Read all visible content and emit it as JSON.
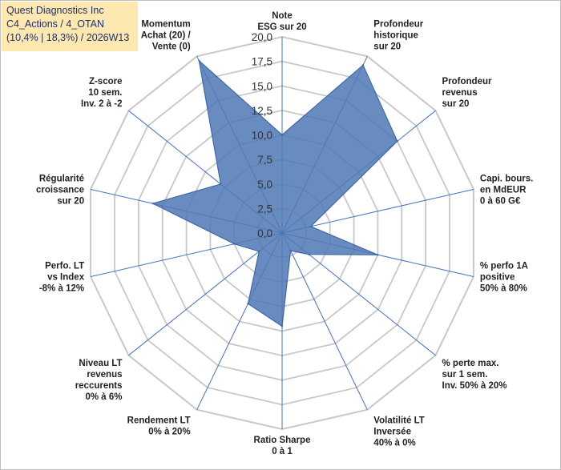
{
  "header": {
    "company": "Quest Diagnostics Inc",
    "category": "C4_Actions / 4_OTAN",
    "summary": "(10,4% | 18,3%) / 2026W13"
  },
  "colors": {
    "fill": "#4f78b5",
    "stroke": "#3f68a8",
    "grid": "#c8c8c8",
    "spoke": "#4472c4",
    "titleBg": "#fde8b0"
  },
  "chart_data": {
    "type": "radar",
    "title": "Quest Diagnostics Inc",
    "rmin": 0,
    "rmax": 20,
    "step": 2.5,
    "tick_labels": [
      "0,0",
      "2,5",
      "5,0",
      "7,5",
      "10,0",
      "12,5",
      "15,0",
      "17,5",
      "20,0"
    ],
    "axes": [
      {
        "label": [
          "Note",
          "ESG sur 20"
        ],
        "value": 10.0
      },
      {
        "label": [
          "Profondeur",
          "historique",
          "sur 20"
        ],
        "value": 19.0
      },
      {
        "label": [
          "Profondeur",
          "revenus",
          "sur 20"
        ],
        "value": 15.0
      },
      {
        "label": [
          "Capi. bours.",
          "en MdEUR",
          "0 à 60 G€"
        ],
        "value": 3.0
      },
      {
        "label": [
          "% perfo 1A",
          "positive",
          "50% à 80%"
        ],
        "value": 10.0
      },
      {
        "label": [
          "% perte max.",
          "sur 1 sem.",
          "Inv. 50% à 20%"
        ],
        "value": 3.5
      },
      {
        "label": [
          "Volatilité LT",
          "Inversée",
          "40% à 0%"
        ],
        "value": 2.0
      },
      {
        "label": [
          "Ratio Sharpe",
          "0 à 1"
        ],
        "value": 9.5
      },
      {
        "label": [
          "Rendement LT",
          "0% à 20%"
        ],
        "value": 8.0
      },
      {
        "label": [
          "Niveau LT",
          "revenus",
          "reccurents",
          "0% à 6%"
        ],
        "value": 3.0
      },
      {
        "label": [
          "Perfo. LT",
          "vs Index",
          "-8% à 12%"
        ],
        "value": 5.0
      },
      {
        "label": [
          "Régularité",
          "croissance",
          "sur 20"
        ],
        "value": 13.5
      },
      {
        "label": [
          "Z-score",
          "10 sem.",
          "Inv. 2 à -2"
        ],
        "value": 8.0
      },
      {
        "label": [
          "Momentum",
          "Achat (20) /",
          "Vente (0)"
        ],
        "value": 19.5
      }
    ],
    "series": [
      {
        "name": "Quest Diagnostics Inc"
      }
    ]
  }
}
